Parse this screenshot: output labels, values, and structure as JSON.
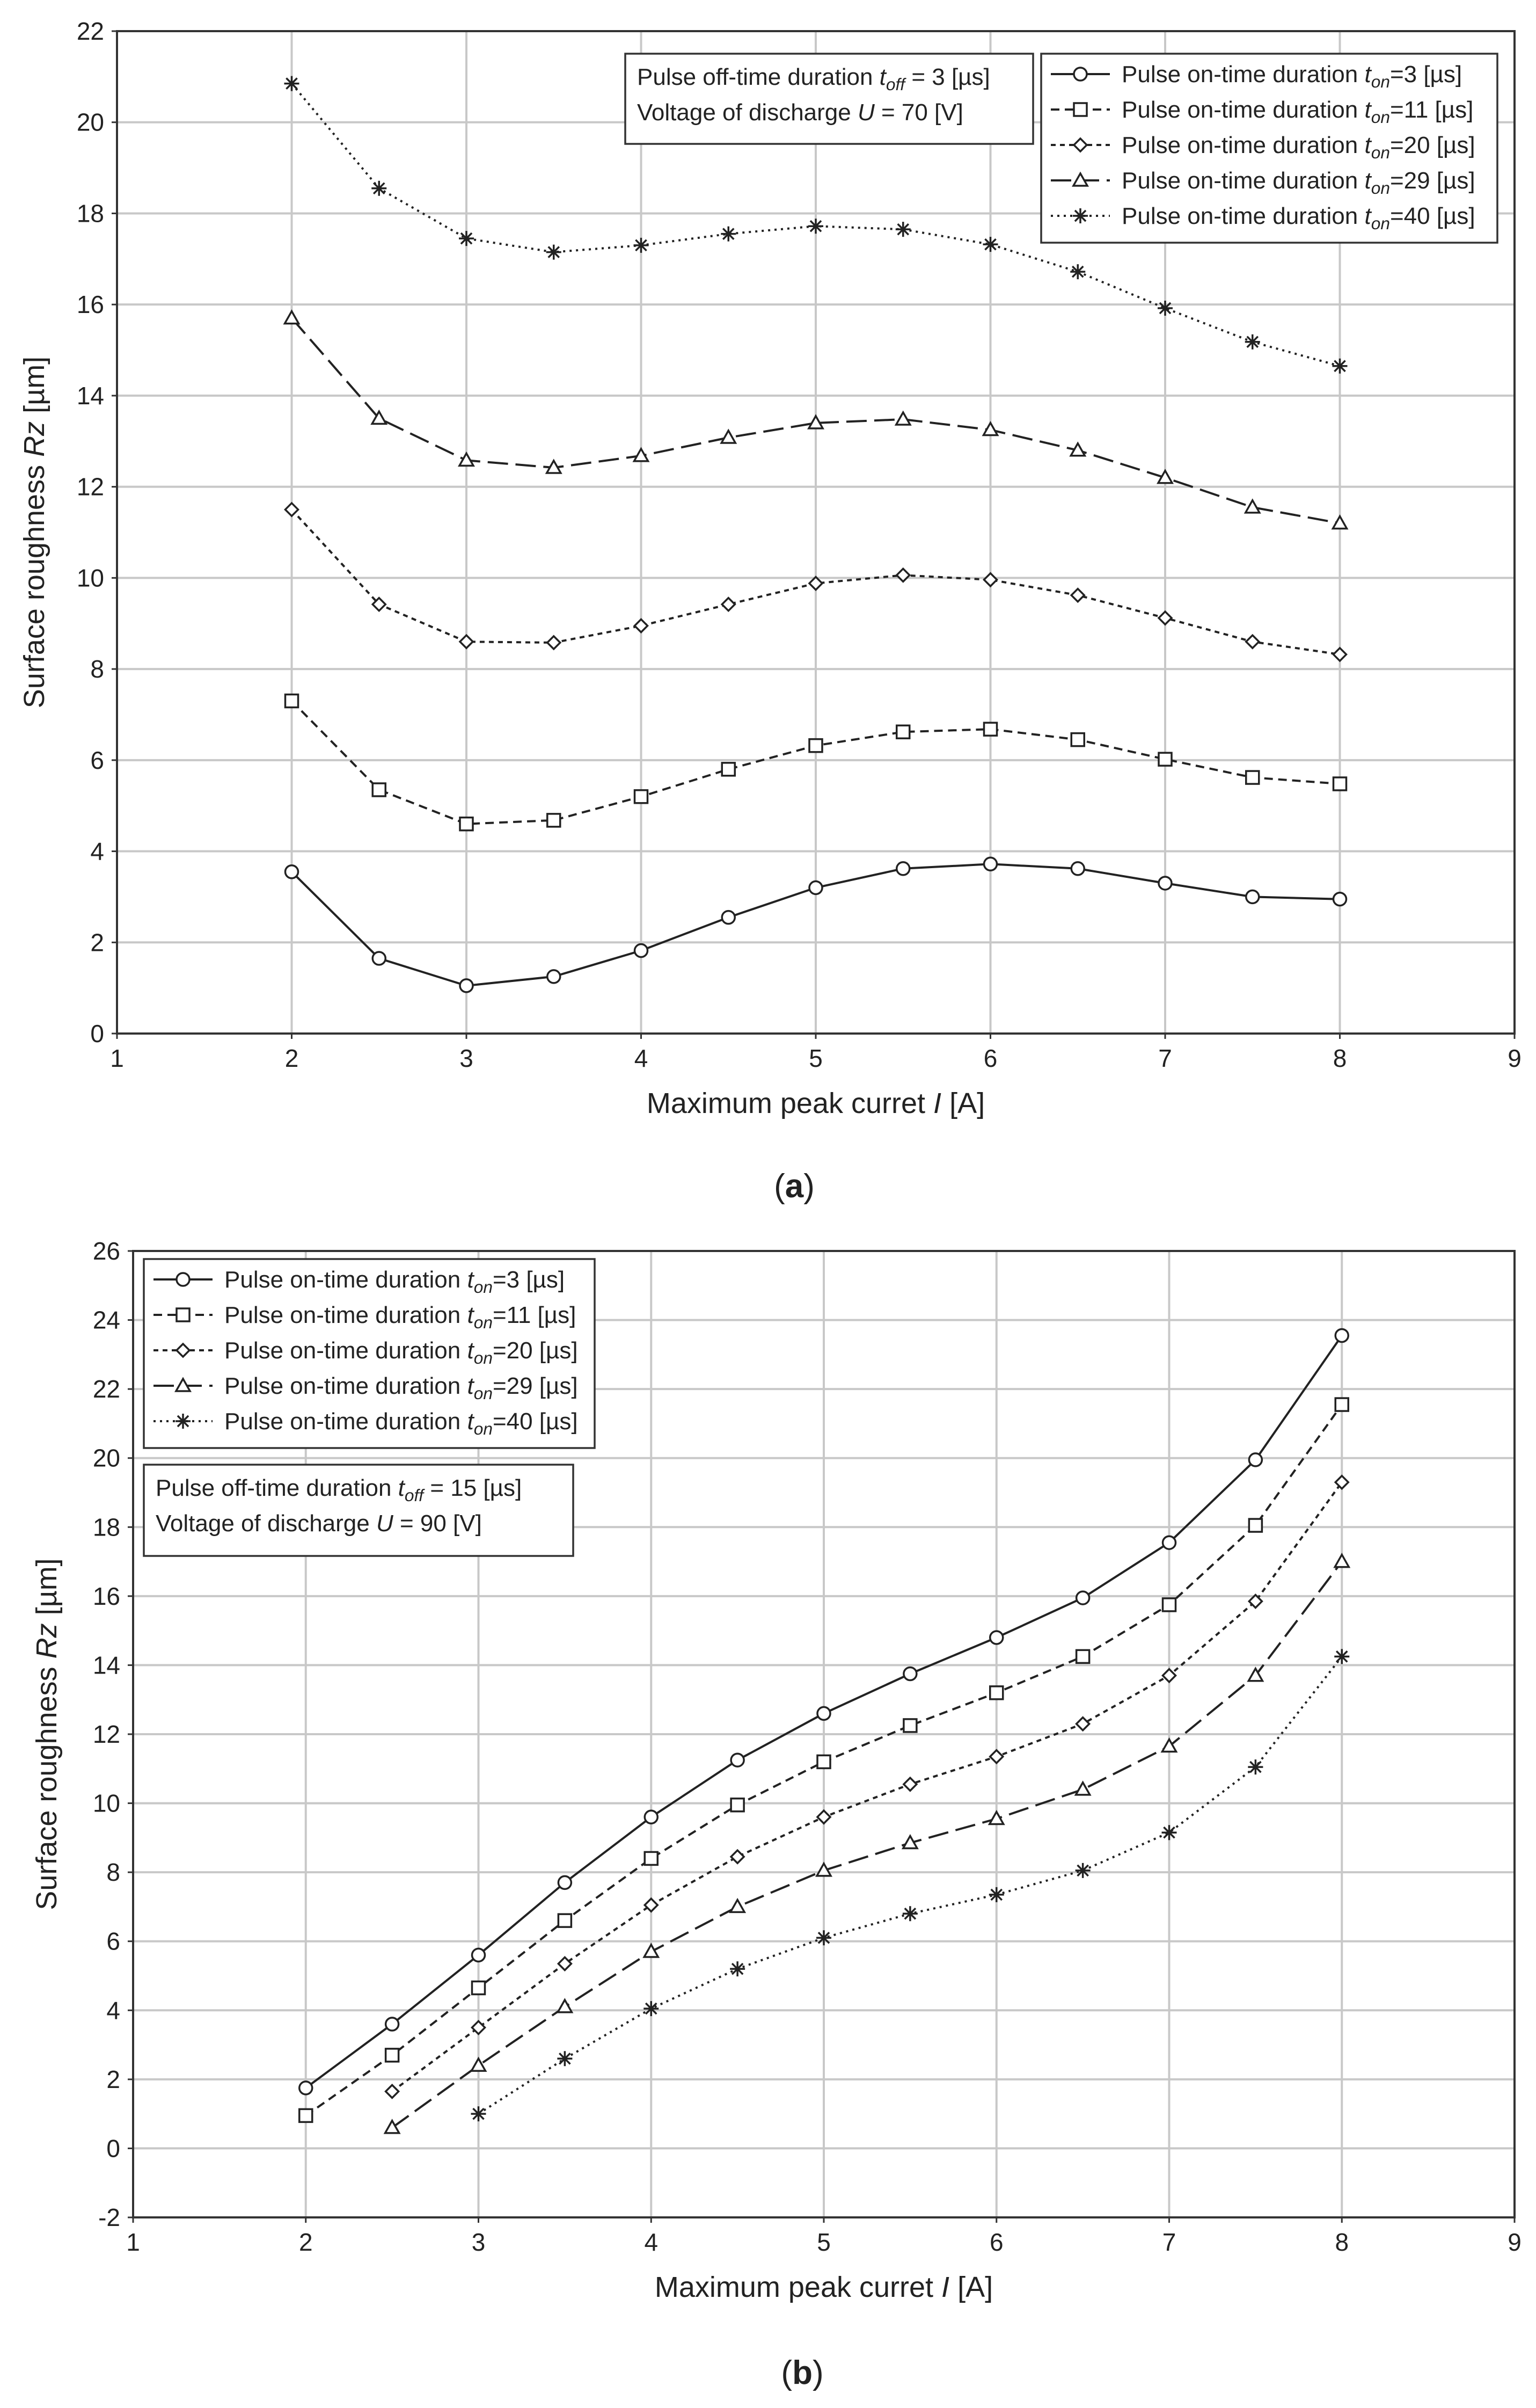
{
  "chart_data": [
    {
      "panel": "a",
      "type": "line",
      "caption_open": "(",
      "caption_letter": "a",
      "caption_close": ")",
      "xlabel_prefix": "Maximum peak curret ",
      "xlabel_var": "I",
      "xlabel_suffix": " [A]",
      "ylabel_prefix": "Surface roughness ",
      "ylabel_var": "Rz",
      "ylabel_suffix": " [µm]",
      "xlim": [
        1,
        9
      ],
      "ylim": [
        0,
        22
      ],
      "xticks": [
        1,
        2,
        3,
        4,
        5,
        6,
        7,
        8,
        9
      ],
      "yticks": [
        0,
        2,
        4,
        6,
        8,
        10,
        12,
        14,
        16,
        18,
        20,
        22
      ],
      "grid": true,
      "legend_position": "top-right",
      "conditions_position": "top-center",
      "conditions": [
        {
          "prefix": "Pulse off-time duration ",
          "var": "t",
          "sub": "off",
          "suffix": " = 3 [µs]"
        },
        {
          "prefix": "Voltage of discharge ",
          "var": "U",
          "sub": "",
          "suffix": " = 70 [V]"
        }
      ],
      "x": [
        2,
        2.5,
        3,
        3.5,
        4,
        4.5,
        5,
        5.5,
        6,
        6.5,
        7,
        7.5,
        8
      ],
      "series": [
        {
          "name": "Pulse on-time duration t_on=3 [µs]",
          "label_prefix": "Pulse on-time duration ",
          "label_var": "t",
          "label_sub": "on",
          "label_suffix": "=3 [µs]",
          "marker": "circle",
          "dash": "solid",
          "values": [
            3.55,
            1.65,
            1.05,
            1.25,
            1.82,
            2.55,
            3.2,
            3.62,
            3.72,
            3.62,
            3.3,
            3.0,
            2.95
          ]
        },
        {
          "name": "Pulse on-time duration t_on=11 [µs]",
          "label_prefix": "Pulse on-time duration ",
          "label_var": "t",
          "label_sub": "on",
          "label_suffix": "=11 [µs]",
          "marker": "square",
          "dash": "dashed",
          "values": [
            7.3,
            5.35,
            4.6,
            4.68,
            5.2,
            5.8,
            6.32,
            6.62,
            6.68,
            6.45,
            6.02,
            5.62,
            5.48
          ]
        },
        {
          "name": "Pulse on-time duration t_on=20 [µs]",
          "label_prefix": "Pulse on-time duration ",
          "label_var": "t",
          "label_sub": "on",
          "label_suffix": "=20 [µs]",
          "marker": "diamond",
          "dash": "short-dash",
          "values": [
            11.5,
            9.42,
            8.6,
            8.58,
            8.95,
            9.42,
            9.88,
            10.06,
            9.96,
            9.62,
            9.12,
            8.6,
            8.32
          ]
        },
        {
          "name": "Pulse on-time duration t_on=29 [µs]",
          "label_prefix": "Pulse on-time duration ",
          "label_var": "t",
          "label_sub": "on",
          "label_suffix": "=29 [µs]",
          "marker": "triangle",
          "dash": "long-dash",
          "values": [
            15.7,
            13.5,
            12.58,
            12.42,
            12.68,
            13.08,
            13.4,
            13.48,
            13.25,
            12.8,
            12.2,
            11.55,
            11.2
          ]
        },
        {
          "name": "Pulse on-time duration t_on=40 [µs]",
          "label_prefix": "Pulse on-time duration ",
          "label_var": "t",
          "label_sub": "on",
          "label_suffix": "=40 [µs]",
          "marker": "star",
          "dash": "dotted",
          "values": [
            20.85,
            18.55,
            17.45,
            17.15,
            17.3,
            17.55,
            17.72,
            17.65,
            17.32,
            16.72,
            15.92,
            15.18,
            14.65
          ]
        }
      ]
    },
    {
      "panel": "b",
      "type": "line",
      "caption_open": "(",
      "caption_letter": "b",
      "caption_close": ")",
      "xlabel_prefix": "Maximum peak curret ",
      "xlabel_var": "I",
      "xlabel_suffix": " [A]",
      "ylabel_prefix": "Surface roughness ",
      "ylabel_var": "Rz",
      "ylabel_suffix": " [µm]",
      "xlim": [
        1,
        9
      ],
      "ylim": [
        -2,
        26
      ],
      "xticks": [
        1,
        2,
        3,
        4,
        5,
        6,
        7,
        8,
        9
      ],
      "yticks": [
        -2,
        0,
        2,
        4,
        6,
        8,
        10,
        12,
        14,
        16,
        18,
        20,
        22,
        24,
        26
      ],
      "grid": true,
      "legend_position": "top-left",
      "conditions_position": "upper-left",
      "conditions": [
        {
          "prefix": "Pulse off-time duration ",
          "var": "t",
          "sub": "off",
          "suffix": " = 15 [µs]"
        },
        {
          "prefix": "Voltage of discharge ",
          "var": "U",
          "sub": "",
          "suffix": " = 90 [V]"
        }
      ],
      "series": [
        {
          "name": "Pulse on-time duration t_on=3 [µs]",
          "label_prefix": "Pulse on-time duration ",
          "label_var": "t",
          "label_sub": "on",
          "label_suffix": "=3 [µs]",
          "marker": "circle",
          "dash": "solid",
          "x": [
            2,
            2.5,
            3,
            3.5,
            4,
            4.5,
            5,
            5.5,
            6,
            6.5,
            7,
            7.5,
            8
          ],
          "values": [
            1.75,
            3.6,
            5.6,
            7.7,
            9.6,
            11.25,
            12.6,
            13.75,
            14.8,
            15.95,
            17.55,
            19.95,
            23.55
          ]
        },
        {
          "name": "Pulse on-time duration t_on=11 [µs]",
          "label_prefix": "Pulse on-time duration ",
          "label_var": "t",
          "label_sub": "on",
          "label_suffix": "=11 [µs]",
          "marker": "square",
          "dash": "dashed",
          "x": [
            2,
            2.5,
            3,
            3.5,
            4,
            4.5,
            5,
            5.5,
            6,
            6.5,
            7,
            7.5,
            8
          ],
          "values": [
            0.95,
            2.7,
            4.65,
            6.6,
            8.4,
            9.95,
            11.2,
            12.25,
            13.2,
            14.25,
            15.75,
            18.05,
            21.55
          ]
        },
        {
          "name": "Pulse on-time duration t_on=20 [µs]",
          "label_prefix": "Pulse on-time duration ",
          "label_var": "t",
          "label_sub": "on",
          "label_suffix": "=20 [µs]",
          "marker": "diamond",
          "dash": "short-dash",
          "x": [
            2.5,
            3,
            3.5,
            4,
            4.5,
            5,
            5.5,
            6,
            6.5,
            7,
            7.5,
            8
          ],
          "values": [
            1.65,
            3.5,
            5.35,
            7.05,
            8.45,
            9.6,
            10.55,
            11.35,
            12.3,
            13.7,
            15.85,
            19.3
          ]
        },
        {
          "name": "Pulse on-time duration t_on=29 [µs]",
          "label_prefix": "Pulse on-time duration ",
          "label_var": "t",
          "label_sub": "on",
          "label_suffix": "=29 [µs]",
          "marker": "triangle",
          "dash": "long-dash",
          "x": [
            2.5,
            3,
            3.5,
            4,
            4.5,
            5,
            5.5,
            6,
            6.5,
            7,
            7.5,
            8
          ],
          "values": [
            0.6,
            2.4,
            4.1,
            5.7,
            7.0,
            8.05,
            8.85,
            9.55,
            10.4,
            11.65,
            13.7,
            17.0
          ]
        },
        {
          "name": "Pulse on-time duration t_on=40 [µs]",
          "label_prefix": "Pulse on-time duration ",
          "label_var": "t",
          "label_sub": "on",
          "label_suffix": "=40 [µs]",
          "marker": "star",
          "dash": "dotted",
          "x": [
            3,
            3.5,
            4,
            4.5,
            5,
            5.5,
            6,
            6.5,
            7,
            7.5,
            8
          ],
          "values": [
            1.0,
            2.6,
            4.05,
            5.2,
            6.1,
            6.8,
            7.35,
            8.05,
            9.15,
            11.05,
            14.25
          ]
        }
      ]
    }
  ]
}
